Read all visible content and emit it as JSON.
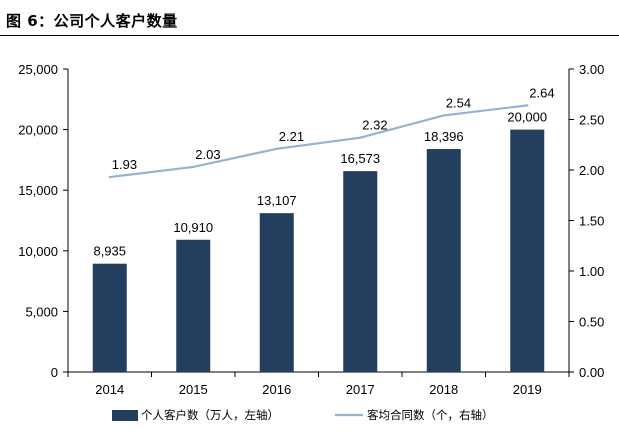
{
  "figure": {
    "title": "图 6：公司个人客户数量"
  },
  "chart_data": {
    "type": "bar+line",
    "categories": [
      "2014",
      "2015",
      "2016",
      "2017",
      "2018",
      "2019"
    ],
    "series": [
      {
        "name": "个人客户数（万人，左轴）",
        "type": "bar",
        "axis": "left",
        "color": "#243e60",
        "values": [
          8935,
          10910,
          13107,
          16573,
          18396,
          20000
        ],
        "labels": [
          "8,935",
          "10,910",
          "13,107",
          "16,573",
          "18,396",
          "20,000"
        ]
      },
      {
        "name": "客均合同数（个，右轴）",
        "type": "line",
        "axis": "right",
        "color": "#94b3d3",
        "values": [
          1.93,
          2.03,
          2.21,
          2.32,
          2.54,
          2.64
        ],
        "labels": [
          "1.93",
          "2.03",
          "2.21",
          "2.32",
          "2.54",
          "2.64"
        ]
      }
    ],
    "y_left": {
      "range": [
        0,
        25000
      ],
      "ticks": [
        0,
        5000,
        10000,
        15000,
        20000,
        25000
      ],
      "tick_labels": [
        "0",
        "5,000",
        "10,000",
        "15,000",
        "20,000",
        "25,000"
      ]
    },
    "y_right": {
      "range": [
        0,
        3
      ],
      "ticks": [
        0,
        0.5,
        1,
        1.5,
        2,
        2.5,
        3
      ],
      "tick_labels": [
        "0.00",
        "0.50",
        "1.00",
        "1.50",
        "2.00",
        "2.50",
        "3.00"
      ]
    },
    "grid": false,
    "legend_position": "bottom"
  }
}
